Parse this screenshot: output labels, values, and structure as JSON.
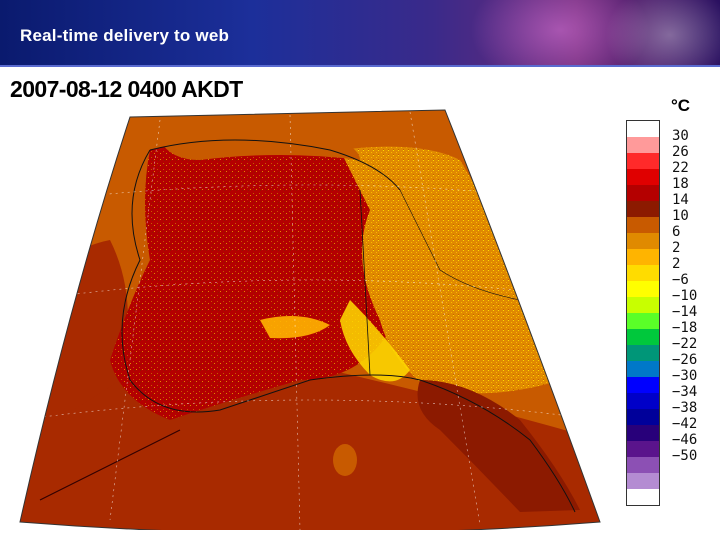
{
  "banner": {
    "title": "Real-time delivery to web"
  },
  "map": {
    "title": "2007-08-12 0400 AKDT",
    "unit": "°C"
  },
  "legend": {
    "colors": [
      "#ffffff",
      "#ff9a9a",
      "#ff2a2a",
      "#e00000",
      "#b40000",
      "#8c1a00",
      "#c85a00",
      "#e08a00",
      "#ffb400",
      "#ffdc00",
      "#ffff00",
      "#c8ff00",
      "#5aff28",
      "#00c83c",
      "#009678",
      "#0078c8",
      "#0000ff",
      "#0000c8",
      "#00009a",
      "#28007a",
      "#5a148c",
      "#8c50b4",
      "#b48cd2",
      "#ffffff"
    ],
    "labels": [
      "30",
      "26",
      "22",
      "18",
      "14",
      "10",
      "6",
      "2",
      "2",
      "−6",
      "−10",
      "−14",
      "−18",
      "−22",
      "−26",
      "−30",
      "−34",
      "−38",
      "−42",
      "−46",
      "−50"
    ]
  }
}
